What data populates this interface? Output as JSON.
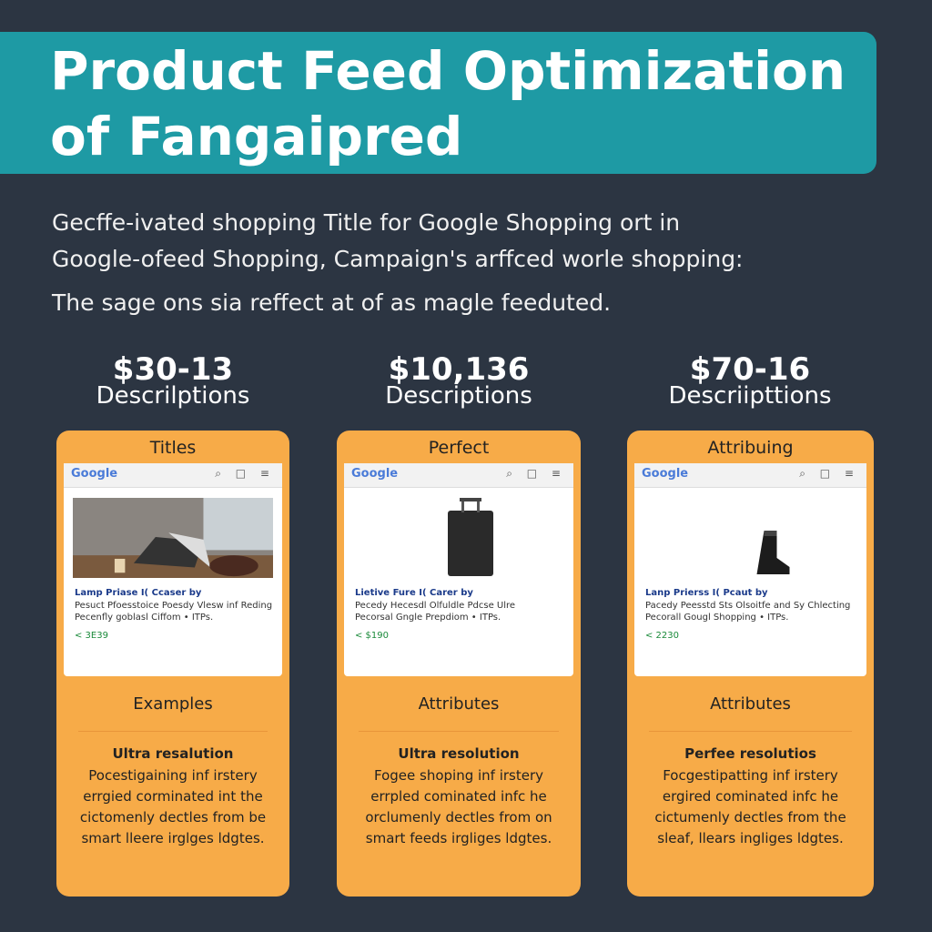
{
  "header": {
    "title_lines": [
      "Product Feed Optimization",
      "of Fangaipred"
    ]
  },
  "intro": {
    "lines": [
      "Gecffe-ivated shopping Title for Google Shopping ort in",
      "Google-ofeed Shopping, Campaign's arffced worle shopping:"
    ],
    "note": "The sage ons sia reffect at of as magle feeduted."
  },
  "columns": [
    {
      "price": "$30-13",
      "label": "Descrilptions",
      "card_title": "Titles",
      "logo": "Google",
      "product_title": "Lamp Priase I( Ccaser by",
      "product_lines": [
        "Pesuct Pfoesstoice Poesdy Vlesw inf Reding",
        "Pecenfly goblasl Ciffom • ITPs."
      ],
      "product_price": "< 3E39",
      "section": "Examples",
      "bold": "Ultra resalution",
      "body": [
        "Pocestigaining inf irstery",
        "errgied corminated int the",
        "cictomenly dectles from be",
        "smart lleere irglges ldgtes."
      ]
    },
    {
      "price": "$10,136",
      "label": "Descriptions",
      "card_title": "Perfect",
      "logo": "Google",
      "product_title": "Lietive Fure I( Carer by",
      "product_lines": [
        "Pecedy Hecesdl Olfuldle Pdcse Ulre",
        "Pecorsal Gngle Prepdiom • ITPs."
      ],
      "product_price": "< $190",
      "section": "Attributes",
      "bold": "Ultra resolution",
      "body": [
        "Fogee shoping inf irstery",
        "errpled cominated infc he",
        "orclumenly dectles from on",
        "smart feeds irgliges ldgtes."
      ]
    },
    {
      "price": "$70-16",
      "label": "Descriipttions",
      "card_title": "Attribuing",
      "logo": "Google",
      "product_title": "Lanp Prierss I( Pcaut by",
      "product_lines": [
        "Pacedy Peesstd Sts Olsoitfe and Sy Chlecting",
        "Pecorall Gougl Shopping • ITPs."
      ],
      "product_price": "< 2230",
      "section": "Attributes",
      "bold": "Perfee resolutios",
      "body": [
        "Focgestipatting inf irstery",
        "ergired cominated infc he",
        "cictumenly dectles from the",
        "sleaf, llears ingliges ldgtes."
      ]
    }
  ]
}
